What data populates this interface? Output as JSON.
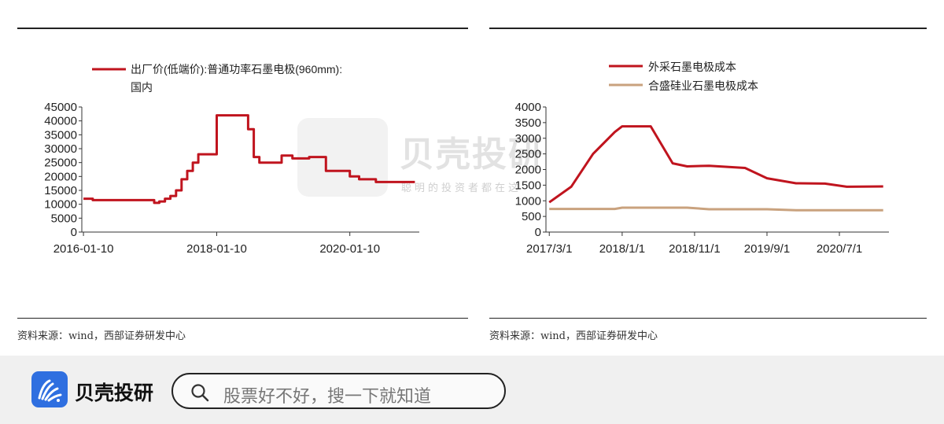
{
  "source_note_left": "资料来源：wind，西部证券研发中心",
  "source_note_right": "资料来源：wind，西部证券研发中心",
  "watermark": {
    "brand": "贝壳投研",
    "tagline": "聪明的投资者都在这"
  },
  "footer": {
    "brand": "贝壳投研",
    "search_placeholder": "股票好不好，搜一下就知道",
    "search_icon": "search-icon",
    "logo_icon": "shell-logo-icon"
  },
  "colors": {
    "red": "#c0141e",
    "tan": "#c9a27e",
    "logo_blue": "#2f6fe0"
  },
  "chart_data": [
    {
      "type": "line",
      "legend": [
        "出厂价(低端价):普通功率石墨电极(960mm):",
        "国内"
      ],
      "series": [
        {
          "name": "出厂价(低端价):普通功率石墨电极(960mm):国内",
          "x": [
            "2016-01-10",
            "2016-03-01",
            "2016-05-01",
            "2016-08-01",
            "2016-12-01",
            "2017-02-01",
            "2017-03-01",
            "2017-04-01",
            "2017-05-01",
            "2017-06-01",
            "2017-07-01",
            "2017-08-01",
            "2017-09-01",
            "2017-10-01",
            "2018-01-10",
            "2018-06-01",
            "2018-07-01",
            "2018-08-01",
            "2018-09-01",
            "2018-11-01",
            "2019-01-01",
            "2019-03-01",
            "2019-05-01",
            "2019-06-01",
            "2019-07-01",
            "2019-09-01",
            "2020-01-10",
            "2020-03-01",
            "2020-06-01",
            "2021-01-01"
          ],
          "y": [
            12000,
            11500,
            11500,
            11500,
            11500,
            10500,
            11000,
            12000,
            13000,
            15000,
            19000,
            22000,
            25000,
            28000,
            42000,
            42000,
            37000,
            27000,
            25000,
            25000,
            27500,
            26500,
            26500,
            27000,
            27000,
            22000,
            20000,
            19000,
            18000,
            18000
          ]
        }
      ],
      "yticks": [
        "0",
        "5000",
        "10000",
        "15000",
        "20000",
        "25000",
        "30000",
        "35000",
        "40000",
        "45000"
      ],
      "xticks": [
        "2016-01-10",
        "2018-01-10",
        "2020-01-10"
      ],
      "ylim": [
        0,
        45000
      ]
    },
    {
      "type": "line",
      "legend": [
        "外采石墨电极成本",
        "合盛硅业石墨电极成本"
      ],
      "series": [
        {
          "name": "外采石墨电极成本",
          "x": [
            "2017-03-01",
            "2017-06-01",
            "2017-09-01",
            "2017-12-01",
            "2018-01-01",
            "2018-05-01",
            "2018-08-01",
            "2018-10-01",
            "2019-01-01",
            "2019-06-01",
            "2019-09-01",
            "2020-01-01",
            "2020-05-01",
            "2020-08-01",
            "2021-01-01"
          ],
          "y": [
            950,
            1450,
            2500,
            3200,
            3380,
            3380,
            2200,
            2100,
            2120,
            2050,
            1720,
            1560,
            1550,
            1450,
            1460
          ]
        },
        {
          "name": "合盛硅业石墨电极成本",
          "x": [
            "2017-03-01",
            "2017-12-01",
            "2018-01-01",
            "2018-10-01",
            "2019-01-01",
            "2019-09-01",
            "2020-01-01",
            "2020-07-01",
            "2021-01-01"
          ],
          "y": [
            740,
            740,
            780,
            780,
            730,
            730,
            700,
            700,
            700
          ]
        }
      ],
      "yticks": [
        "0",
        "500",
        "1000",
        "1500",
        "2000",
        "2500",
        "3000",
        "3500",
        "4000"
      ],
      "xticks": [
        "2017/3/1",
        "2018/1/1",
        "2018/11/1",
        "2019/9/1",
        "2020/7/1"
      ],
      "ylim": [
        0,
        4000
      ]
    }
  ]
}
